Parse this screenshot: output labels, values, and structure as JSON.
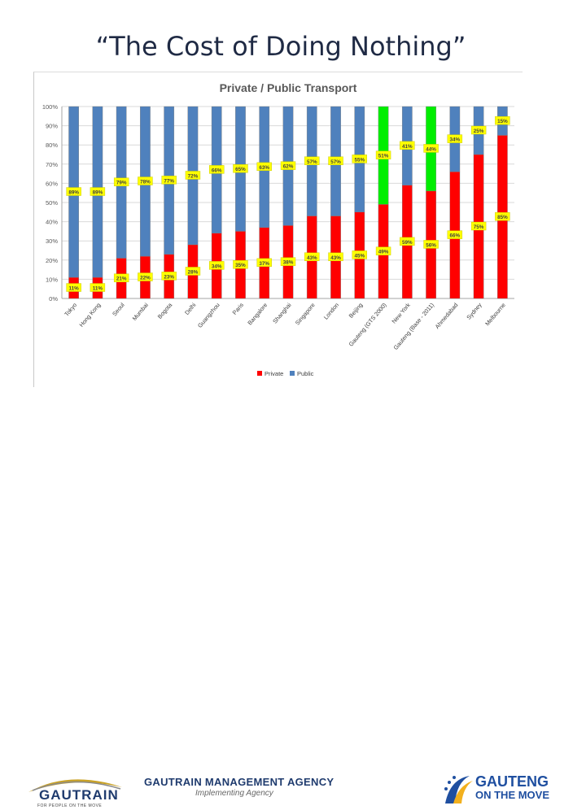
{
  "slide": {
    "title": "“The Cost of Doing Nothing”"
  },
  "footer": {
    "gautrain_name": "GAUTRAIN",
    "gautrain_tagline": "FOR PEOPLE ON THE MOVE",
    "agency_name": "GAUTRAIN MANAGEMENT AGENCY",
    "agency_subtitle": "Implementing Agency",
    "gauteng_name": "GAUTENG",
    "gauteng_subtitle": "ON THE MOVE"
  },
  "colors": {
    "private": "#ff0000",
    "public": "#4f81bd",
    "public_highlight": "#00ee00",
    "label_bg": "#ffff00",
    "grid": "#d9d9d9"
  },
  "chart_data": {
    "type": "bar",
    "stacked": true,
    "title": "Private / Public Transport",
    "categories": [
      "Tokyo",
      "Hong Kong",
      "Seoul",
      "Mumbai",
      "Bogota",
      "Delhi",
      "Guangzhou",
      "Paris",
      "Bangalore",
      "Shanghai",
      "Singapore",
      "London",
      "Beijing",
      "Gauteng (GTS 2000)",
      "New York",
      "Gauteng (Base - 2011)",
      "Ahmedabad",
      "Sydney",
      "Melbourne"
    ],
    "series": [
      {
        "name": "Private",
        "values": [
          11,
          11,
          21,
          22,
          23,
          28,
          34,
          35,
          37,
          38,
          43,
          43,
          45,
          49,
          59,
          56,
          66,
          75,
          85
        ]
      },
      {
        "name": "Public",
        "values": [
          89,
          89,
          79,
          78,
          77,
          72,
          66,
          65,
          63,
          62,
          57,
          57,
          55,
          51,
          41,
          44,
          34,
          25,
          15
        ]
      }
    ],
    "private_labels": [
      "11%",
      "11%",
      "21%",
      "22%",
      "23%",
      "28%",
      "34%",
      "35%",
      "37%",
      "38%",
      "43%",
      "43%",
      "45%",
      "49%",
      "59%",
      "56%",
      "66%",
      "75%",
      "85%"
    ],
    "public_labels": [
      "89%",
      "89%",
      "79%",
      "78%",
      "77%",
      "72%",
      "66%",
      "65%",
      "63%",
      "62%",
      "57%",
      "57%",
      "55%",
      "51%",
      "41%",
      "44%",
      "34%",
      "25%",
      "15%"
    ],
    "highlighted_categories": [
      "Gauteng (GTS 2000)",
      "Gauteng (Base - 2011)"
    ],
    "y_ticks": [
      "0%",
      "10%",
      "20%",
      "30%",
      "40%",
      "50%",
      "60%",
      "70%",
      "80%",
      "90%",
      "100%"
    ],
    "ylim": [
      0,
      100
    ],
    "legend": [
      "Private",
      "Public"
    ],
    "legend_position": "bottom",
    "grid": true
  }
}
